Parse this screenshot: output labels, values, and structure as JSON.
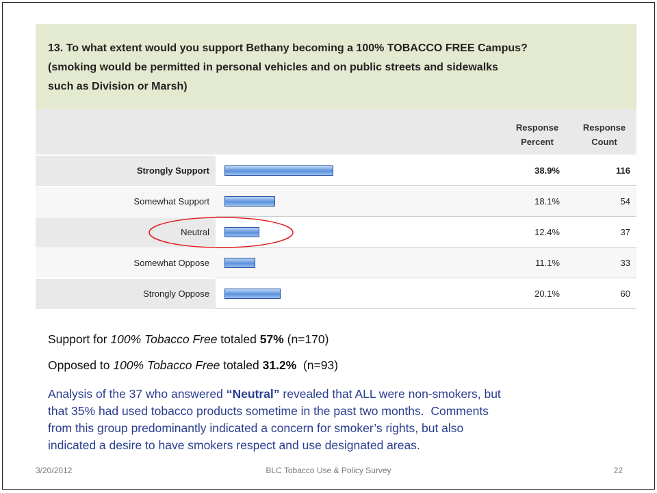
{
  "question": {
    "lines": [
      "13. To what extent would you support Bethany becoming a 100% TOBACCO FREE Campus?",
      "(smoking would be permitted in personal vehicles and on public streets and sidewalks",
      "such as Division or Marsh)"
    ]
  },
  "table": {
    "headers": [
      [
        "Response",
        "Percent"
      ],
      [
        "Response",
        "Count"
      ]
    ],
    "rows": [
      {
        "label": "Strongly Support",
        "percent": 38.9,
        "percent_label": "38.9%",
        "count": "116",
        "bold": true
      },
      {
        "label": "Somewhat Support",
        "percent": 18.1,
        "percent_label": "18.1%",
        "count": "54"
      },
      {
        "label": "Neutral",
        "percent": 12.4,
        "percent_label": "12.4%",
        "count": "37"
      },
      {
        "label": "Somewhat Oppose",
        "percent": 11.1,
        "percent_label": "11.1%",
        "count": "33"
      },
      {
        "label": "Strongly Oppose",
        "percent": 20.1,
        "percent_label": "20.1%",
        "count": "60"
      }
    ]
  },
  "summary": [
    [
      "Support for ",
      "100% Tobacco Free",
      " totaled ",
      "57%",
      " (n=170)"
    ],
    [
      "Opposed to ",
      "100% Tobacco Free",
      " totaled ",
      "31.2%",
      "  (n=93)"
    ]
  ],
  "analysis": {
    "first": [
      "Analysis of the 37 who answered ",
      "“Neutral”",
      " revealed that ALL were non-smokers, but"
    ],
    "lines": [
      "that 35% had used tobacco products sometime in the past two months.  Comments",
      "from this group predominantly indicated a concern for smoker’s rights, but also",
      "indicated a desire to have smokers respect and use designated areas."
    ]
  },
  "footer": {
    "date": "3/20/2012",
    "center": "BLC Tobacco Use & Policy Survey",
    "page": "22"
  }
}
